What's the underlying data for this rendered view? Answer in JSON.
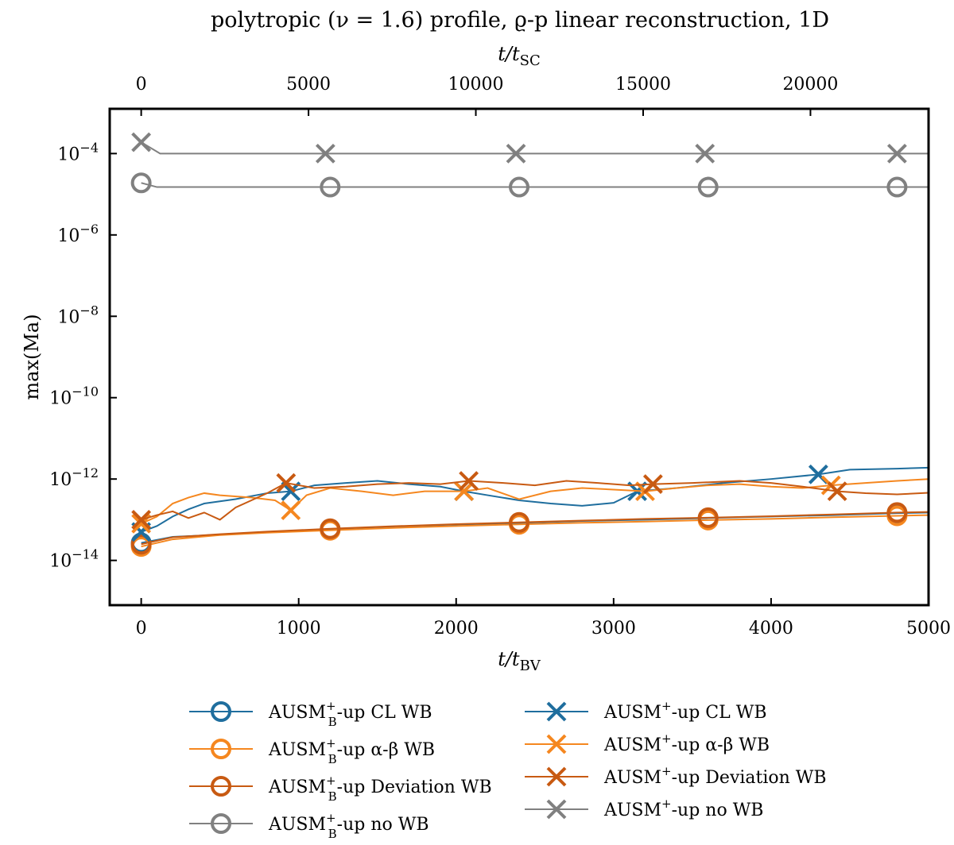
{
  "chart_data": {
    "type": "line",
    "title": "polytropic (ν = 1.6) profile, ϱ-p linear reconstruction, 1D",
    "xlabel_bottom": {
      "base": "t/t",
      "sub": "BV"
    },
    "xlabel_top": {
      "base": "t/t",
      "sub": "SC"
    },
    "ylabel": "max(Ma)",
    "yscale": "log",
    "xlim": [
      -200,
      5000
    ],
    "ylim_exp": [
      -15.1,
      -2.9
    ],
    "xticks": [
      0,
      1000,
      2000,
      3000,
      4000,
      5000
    ],
    "xticks_top": [
      {
        "value": 0,
        "label": "0"
      },
      {
        "value": 5000,
        "label": "5000"
      },
      {
        "value": 10000,
        "label": "10000"
      },
      {
        "value": 15000,
        "label": "15000"
      },
      {
        "value": 20000,
        "label": "20000"
      }
    ],
    "top_axis_scale": 0.2125,
    "yticks_exp": [
      -14,
      -12,
      -10,
      -8,
      -6,
      -4
    ],
    "series": [
      {
        "name": "AUSM_B^+-up CL WB",
        "color": "#1f6e9e",
        "marker": "circle",
        "marker_x": [
          0,
          1200,
          2400,
          3600,
          4800
        ],
        "x": [
          0,
          200,
          500,
          800,
          1200,
          1600,
          2000,
          2400,
          2800,
          3200,
          3600,
          4000,
          4400,
          4800,
          5000
        ],
        "y": [
          2.7e-14,
          3.8e-14,
          4.3e-14,
          5e-14,
          5.9e-14,
          6.8e-14,
          7.6e-14,
          8.3e-14,
          9.3e-14,
          1e-13,
          1.1e-13,
          1.2e-13,
          1.3e-13,
          1.45e-13,
          1.5e-13
        ]
      },
      {
        "name": "AUSM_B^+-up α-β WB",
        "color": "#f5871f",
        "marker": "circle",
        "marker_x": [
          0,
          1200,
          2400,
          3600,
          4800
        ],
        "x": [
          0,
          200,
          500,
          800,
          1200,
          1600,
          2000,
          2400,
          2800,
          3200,
          3600,
          4000,
          4400,
          4800,
          5000
        ],
        "y": [
          2.2e-14,
          3.3e-14,
          4.2e-14,
          4.8e-14,
          5.5e-14,
          6.3e-14,
          7e-14,
          7.7e-14,
          8.4e-14,
          9e-14,
          9.8e-14,
          1.05e-13,
          1.15e-13,
          1.25e-13,
          1.3e-13
        ]
      },
      {
        "name": "AUSM_B^+-up Deviation WB",
        "color": "#c85a12",
        "marker": "circle",
        "marker_x": [
          0,
          1200,
          2400,
          3600,
          4800
        ],
        "x": [
          0,
          200,
          500,
          800,
          1200,
          1600,
          2000,
          2400,
          2800,
          3200,
          3600,
          4000,
          4400,
          4800,
          5000
        ],
        "y": [
          2.5e-14,
          3.7e-14,
          4.4e-14,
          5.1e-14,
          6e-14,
          6.9e-14,
          7.8e-14,
          8.6e-14,
          9.5e-14,
          1.05e-13,
          1.12e-13,
          1.22e-13,
          1.35e-13,
          1.5e-13,
          1.55e-13
        ]
      },
      {
        "name": "AUSM_B^+-up no WB",
        "color": "#808080",
        "marker": "circle",
        "marker_x": [
          0,
          1200,
          2400,
          3600,
          4800
        ],
        "x": [
          0,
          100,
          5000
        ],
        "y": [
          1.9e-05,
          1.5e-05,
          1.5e-05
        ]
      },
      {
        "name": "AUSM^+-up CL WB",
        "color": "#1f6e9e",
        "marker": "x",
        "marker_x": [
          0,
          950,
          2050,
          3150,
          4300
        ],
        "x": [
          0,
          100,
          200,
          300,
          400,
          600,
          800,
          950,
          1100,
          1300,
          1500,
          1700,
          1900,
          2050,
          2200,
          2400,
          2600,
          2800,
          3000,
          3150,
          3400,
          3700,
          4000,
          4300,
          4500,
          4800,
          5000
        ],
        "y": [
          5e-14,
          7e-14,
          1.2e-13,
          1.8e-13,
          2.5e-13,
          3.2e-13,
          4.5e-13,
          5e-13,
          7e-13,
          8e-13,
          9e-13,
          7.5e-13,
          6.5e-13,
          5e-13,
          4e-13,
          3e-13,
          2.5e-13,
          2.2e-13,
          2.6e-13,
          5e-13,
          6e-13,
          8e-13,
          1e-12,
          1.3e-12,
          1.7e-12,
          1.8e-12,
          1.9e-12
        ]
      },
      {
        "name": "AUSM^+-up α-β WB",
        "color": "#f5871f",
        "marker": "x",
        "marker_x": [
          0,
          950,
          2050,
          3200,
          4380
        ],
        "x": [
          0,
          100,
          200,
          300,
          400,
          500,
          700,
          850,
          950,
          1050,
          1200,
          1400,
          1600,
          1800,
          2050,
          2200,
          2400,
          2600,
          2800,
          3000,
          3200,
          3400,
          3600,
          3800,
          4000,
          4200,
          4380,
          4600,
          4800,
          5000
        ],
        "y": [
          8e-14,
          1.2e-13,
          2.5e-13,
          3.5e-13,
          4.5e-13,
          4e-13,
          3.5e-13,
          3e-13,
          1.7e-13,
          4e-13,
          6e-13,
          5e-13,
          4e-13,
          5e-13,
          5e-13,
          6e-13,
          3.2e-13,
          5e-13,
          6e-13,
          5.5e-13,
          5e-13,
          6e-13,
          7e-13,
          7.5e-13,
          6.5e-13,
          6e-13,
          7e-13,
          8e-13,
          9e-13,
          1e-12
        ]
      },
      {
        "name": "AUSM^+-up Deviation WB",
        "color": "#c85a12",
        "marker": "x",
        "marker_x": [
          0,
          920,
          2080,
          3250,
          4420
        ],
        "x": [
          0,
          100,
          200,
          300,
          400,
          500,
          600,
          700,
          800,
          920,
          1100,
          1300,
          1500,
          1700,
          1900,
          2080,
          2300,
          2500,
          2700,
          2900,
          3100,
          3250,
          3500,
          3800,
          4000,
          4200,
          4420,
          4600,
          4800,
          5000
        ],
        "y": [
          1e-13,
          1.3e-13,
          1.6e-13,
          1.1e-13,
          1.5e-13,
          1e-13,
          2e-13,
          3e-13,
          4.5e-13,
          8e-13,
          6e-13,
          6.5e-13,
          7.5e-13,
          8e-13,
          7.5e-13,
          9e-13,
          8e-13,
          7e-13,
          9e-13,
          8e-13,
          7e-13,
          7.5e-13,
          8e-13,
          9e-13,
          8e-13,
          6.5e-13,
          5e-13,
          4.5e-13,
          4.2e-13,
          4.6e-13
        ]
      },
      {
        "name": "AUSM^+-up no WB",
        "color": "#808080",
        "marker": "x",
        "marker_x": [
          0,
          1170,
          2380,
          3580,
          4800
        ],
        "x": [
          0,
          120,
          5000
        ],
        "y": [
          0.00019,
          0.0001,
          0.0001
        ]
      }
    ],
    "legend": {
      "placement": "below-plot",
      "left_column": [
        {
          "series_index": 0,
          "base": "AUSM",
          "sup": "+",
          "sub": "B",
          "rest": "-up CL WB"
        },
        {
          "series_index": 1,
          "base": "AUSM",
          "sup": "+",
          "sub": "B",
          "rest": "-up α-β WB"
        },
        {
          "series_index": 2,
          "base": "AUSM",
          "sup": "+",
          "sub": "B",
          "rest": "-up Deviation WB"
        },
        {
          "series_index": 3,
          "base": "AUSM",
          "sup": "+",
          "sub": "B",
          "rest": "-up no WB"
        }
      ],
      "right_column": [
        {
          "series_index": 4,
          "base": "AUSM",
          "sup": "+",
          "sub": "",
          "rest": "-up CL WB"
        },
        {
          "series_index": 5,
          "base": "AUSM",
          "sup": "+",
          "sub": "",
          "rest": "-up α-β WB"
        },
        {
          "series_index": 6,
          "base": "AUSM",
          "sup": "+",
          "sub": "",
          "rest": "-up Deviation WB"
        },
        {
          "series_index": 7,
          "base": "AUSM",
          "sup": "+",
          "sub": "",
          "rest": "-up no WB"
        }
      ]
    }
  }
}
